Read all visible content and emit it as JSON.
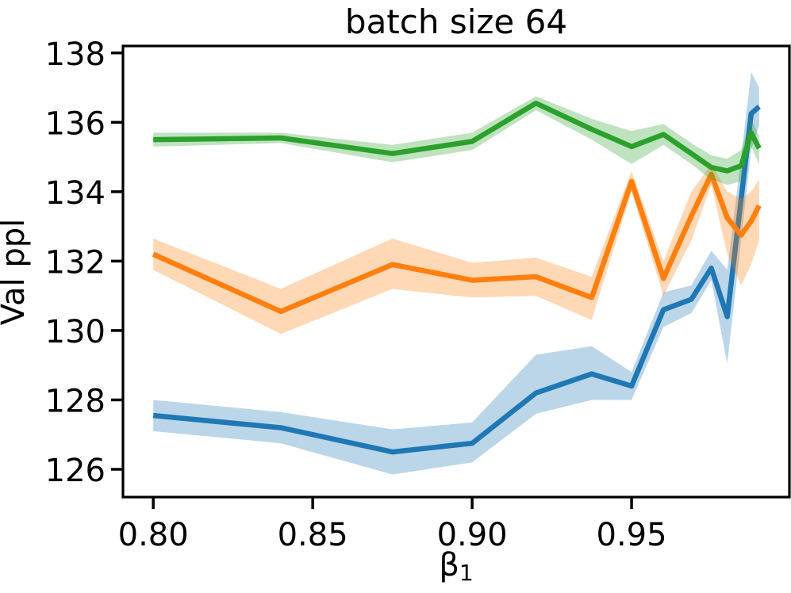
{
  "figure": {
    "background": "#ffffff"
  },
  "chart_data": {
    "type": "line",
    "title": "batch size 64",
    "ylabel": "Val ppl",
    "xlabel": {
      "base": "β",
      "sub": "1"
    },
    "grid": false,
    "legend": "none",
    "xlim": [
      0.7905,
      0.9995
    ],
    "ylim": [
      125.2,
      138.2
    ],
    "xticks": {
      "values": [
        0.8,
        0.85,
        0.9,
        0.95
      ],
      "labels": [
        "0.80",
        "0.85",
        "0.90",
        "0.95"
      ]
    },
    "yticks": {
      "values": [
        126,
        128,
        130,
        132,
        134,
        136,
        138
      ],
      "labels": [
        "126",
        "128",
        "130",
        "132",
        "134",
        "136",
        "138"
      ]
    },
    "x": [
      0.8,
      0.84,
      0.875,
      0.9,
      0.92,
      0.9375,
      0.95,
      0.96,
      0.96875,
      0.975,
      0.98,
      0.984375,
      0.9875,
      0.99
    ],
    "series": [
      {
        "name": "blue",
        "color": "#1f77b4",
        "band_opacity": 0.3,
        "values": [
          127.55,
          127.2,
          126.5,
          126.75,
          128.2,
          128.75,
          128.4,
          130.6,
          130.9,
          131.8,
          130.4,
          133.8,
          136.25,
          136.45
        ],
        "band_lower": [
          127.1,
          126.75,
          125.85,
          126.2,
          127.6,
          128.0,
          128.0,
          130.1,
          130.5,
          131.45,
          129.05,
          132.6,
          135.2,
          135.9
        ],
        "band_upper": [
          128.0,
          127.65,
          127.15,
          127.35,
          129.3,
          129.55,
          128.8,
          131.1,
          131.3,
          132.3,
          131.75,
          135.0,
          137.45,
          137.0
        ]
      },
      {
        "name": "orange",
        "color": "#ff7f0e",
        "band_opacity": 0.3,
        "values": [
          132.2,
          130.55,
          131.9,
          131.45,
          131.55,
          130.95,
          134.3,
          131.5,
          133.3,
          134.5,
          133.25,
          132.75,
          133.15,
          133.6
        ],
        "band_lower": [
          131.75,
          129.9,
          131.2,
          130.95,
          131.0,
          130.3,
          134.0,
          131.0,
          132.6,
          134.2,
          132.2,
          131.3,
          131.9,
          132.6
        ],
        "band_upper": [
          132.65,
          131.2,
          132.65,
          131.95,
          132.1,
          131.55,
          134.6,
          132.0,
          134.0,
          134.8,
          134.0,
          133.8,
          134.0,
          134.35
        ]
      },
      {
        "name": "green",
        "color": "#2ca02c",
        "band_opacity": 0.3,
        "values": [
          135.5,
          135.55,
          135.1,
          135.45,
          136.55,
          135.8,
          135.3,
          135.65,
          135.1,
          134.7,
          134.6,
          134.75,
          135.7,
          135.25
        ],
        "band_lower": [
          135.3,
          135.4,
          134.85,
          135.2,
          136.35,
          135.5,
          134.8,
          135.35,
          134.8,
          134.35,
          134.2,
          134.3,
          135.3,
          134.8
        ],
        "band_upper": [
          135.7,
          135.7,
          135.35,
          135.7,
          136.75,
          136.1,
          135.75,
          135.95,
          135.4,
          135.05,
          134.95,
          135.2,
          136.1,
          135.6
        ]
      }
    ]
  }
}
